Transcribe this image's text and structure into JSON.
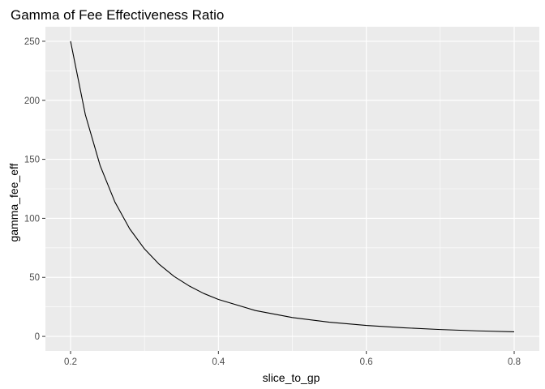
{
  "chart_data": {
    "type": "line",
    "title": "Gamma of Fee Effectiveness Ratio",
    "xlabel": "slice_to_gp",
    "ylabel": "gamma_fee_eff",
    "xlim": [
      0.166,
      0.834
    ],
    "ylim": [
      -12.3,
      262.3
    ],
    "x_ticks": [
      0.2,
      0.4,
      0.6,
      0.8
    ],
    "x_tick_labels": [
      "0.2",
      "0.4",
      "0.6",
      "0.8"
    ],
    "y_ticks": [
      0,
      50,
      100,
      150,
      200,
      250
    ],
    "y_tick_labels": [
      "0",
      "50",
      "100",
      "150",
      "200",
      "250"
    ],
    "grid": true,
    "background": "#EBEBEB",
    "line_color": "#000000",
    "series": [
      {
        "x": [
          0.2,
          0.22,
          0.24,
          0.26,
          0.28,
          0.3,
          0.32,
          0.34,
          0.36,
          0.38,
          0.4,
          0.45,
          0.5,
          0.55,
          0.6,
          0.65,
          0.7,
          0.75,
          0.8
        ],
        "y": [
          250,
          187.8,
          144.7,
          113.8,
          91.1,
          74.1,
          61.0,
          50.8,
          42.9,
          36.4,
          31.3,
          21.9,
          16.0,
          12.0,
          9.3,
          7.3,
          5.8,
          4.7,
          3.9
        ]
      }
    ]
  }
}
